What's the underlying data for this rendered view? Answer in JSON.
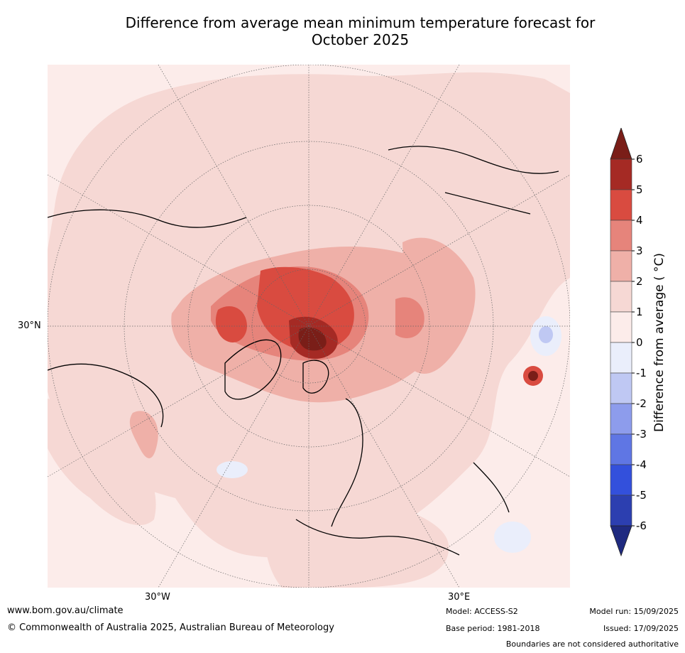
{
  "title_line1": "Difference from average mean minimum temperature forecast for",
  "title_line2": "October 2025",
  "labels": {
    "lat30": "30°N",
    "lon30w": "30°W",
    "lon30e": "30°E"
  },
  "colorbar": {
    "title": "Difference from average ( °C)",
    "ticks": [
      "6",
      "5",
      "4",
      "3",
      "2",
      "1",
      "0",
      "-1",
      "-2",
      "-3",
      "-4",
      "-5",
      "-6"
    ],
    "bins_high_to_low": [
      {
        "range": "5 to 6",
        "color": "#a52a24"
      },
      {
        "range": "4 to 5",
        "color": "#d94b40"
      },
      {
        "range": "3 to 4",
        "color": "#e6847b"
      },
      {
        "range": "2 to 3",
        "color": "#efb0a8"
      },
      {
        "range": "1 to 2",
        "color": "#f6d8d4"
      },
      {
        "range": "0 to 1",
        "color": "#fcecea"
      },
      {
        "range": "-1 to 0",
        "color": "#eaeefb"
      },
      {
        "range": "-2 to -1",
        "color": "#bfc8f3"
      },
      {
        "range": "-3 to -2",
        "color": "#8d9cec"
      },
      {
        "range": "-4 to -3",
        "color": "#5f76e4"
      },
      {
        "range": "-5 to -4",
        "color": "#3350dc"
      },
      {
        "range": "-6 to -5",
        "color": "#2c3fb0"
      }
    ],
    "over_color": "#7a1e18",
    "under_color": "#1f2a80"
  },
  "footer": {
    "website": "www.bom.gov.au/climate",
    "copyright": "© Commonwealth of Australia 2025, Australian Bureau of Meteorology",
    "model": "Model: ACCESS-S2",
    "base_period": "Base period: 1981-2018",
    "model_run": "Model run: 15/09/2025",
    "issued": "Issued: 17/09/2025",
    "disclaimer": "Boundaries are not considered authoritative"
  }
}
